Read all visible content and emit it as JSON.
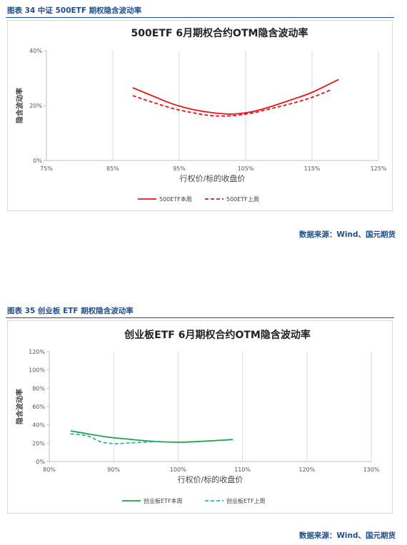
{
  "figures": [
    {
      "caption": "图表 34 中证 500ETF 期权隐含波动率",
      "source": "数据来源：Wind、国元期货"
    },
    {
      "caption": "图表 35 创业板 ETF 期权隐含波动率",
      "source": "数据来源：Wind、国元期货"
    }
  ],
  "chart_data": [
    {
      "type": "line",
      "title": "500ETF 6月期权合约OTM隐含波动率",
      "xlabel": "行权价/标的收盘价",
      "ylabel": "隐含波动率",
      "xlim": [
        75,
        125
      ],
      "ylim": [
        0,
        40
      ],
      "xticks": [
        75,
        85,
        95,
        105,
        115,
        125
      ],
      "xtick_labels": [
        "75%",
        "85%",
        "95%",
        "105%",
        "115%",
        "125%"
      ],
      "yticks": [
        0,
        20,
        40
      ],
      "ytick_labels": [
        "0%",
        "20%",
        "40%"
      ],
      "grid": "vertical",
      "legend_position": "bottom",
      "series": [
        {
          "name": "500ETF本周",
          "color": "#e8141b",
          "dash": "solid",
          "x": [
            88,
            91,
            94,
            97,
            100,
            103,
            106,
            109,
            112,
            115,
            119
          ],
          "y": [
            26.5,
            23.5,
            20.6,
            18.6,
            17.4,
            16.9,
            17.8,
            19.8,
            22.2,
            24.8,
            29.5
          ]
        },
        {
          "name": "500ETF上周",
          "color": "#e8141b",
          "dash": "dashed",
          "x": [
            88,
            91,
            94,
            97,
            100,
            103,
            106,
            109,
            112,
            115,
            118
          ],
          "y": [
            23.6,
            21.2,
            19.0,
            17.4,
            16.3,
            16.3,
            17.3,
            19.0,
            20.8,
            23.0,
            25.9
          ]
        }
      ]
    },
    {
      "type": "line",
      "title": "创业板ETF 6月期权合约OTM隐含波动率",
      "xlabel": "行权价/标的收盘价",
      "ylabel": "隐含波动率",
      "xlim": [
        80,
        130
      ],
      "ylim": [
        0,
        120
      ],
      "xticks": [
        80,
        90,
        100,
        110,
        120,
        130
      ],
      "xtick_labels": [
        "80%",
        "90%",
        "100%",
        "110%",
        "120%",
        "130%"
      ],
      "yticks": [
        0,
        20,
        40,
        60,
        80,
        100,
        120
      ],
      "ytick_labels": [
        "0%",
        "20%",
        "40%",
        "60%",
        "80%",
        "100%",
        "120%"
      ],
      "grid": "vertical",
      "legend_position": "bottom",
      "series": [
        {
          "name": "创业板ETF本周",
          "color": "#1aa34a",
          "dash": "solid",
          "x": [
            83.3,
            86,
            89,
            92,
            95,
            98,
            101,
            104,
            108.5
          ],
          "y": [
            33.5,
            30.2,
            26.8,
            24.6,
            22.6,
            21.4,
            21.2,
            22.2,
            24.0
          ]
        },
        {
          "name": "创业板ETF上周",
          "color": "#2fb3a5",
          "dash": "dashed",
          "x": [
            83.3,
            86,
            88,
            90,
            92,
            95,
            97
          ],
          "y": [
            30.3,
            27.8,
            21.5,
            19.6,
            20.1,
            21.3,
            22.0
          ]
        }
      ]
    }
  ]
}
